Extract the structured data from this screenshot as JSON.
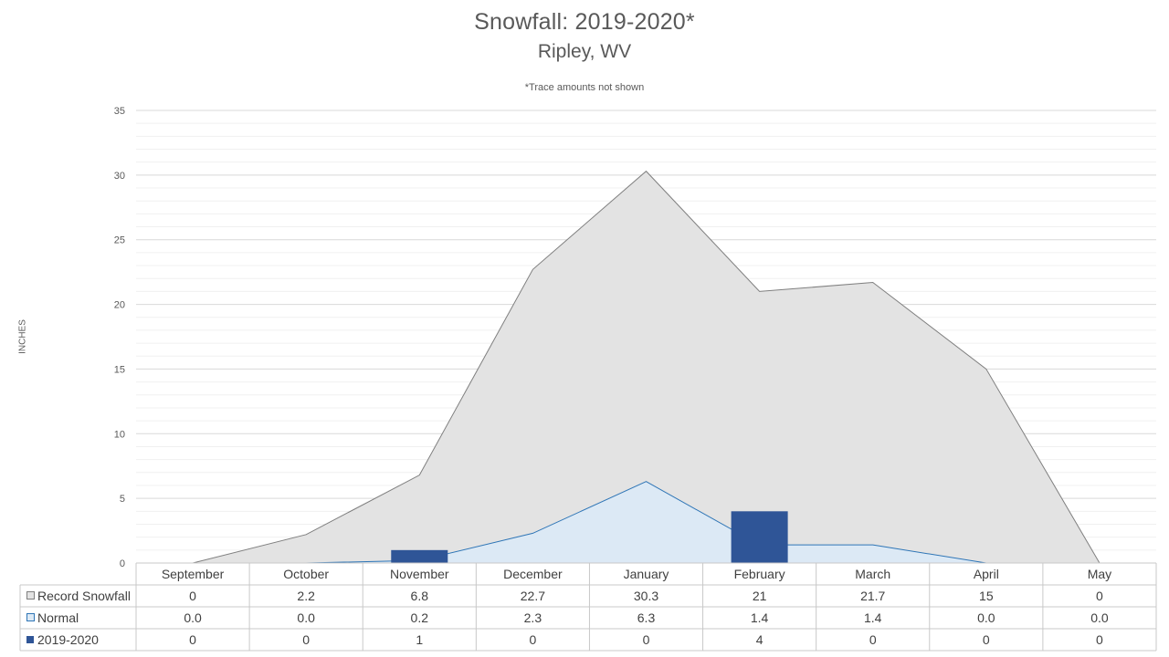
{
  "chart_data": {
    "type": "area",
    "title": "Snowfall: 2019-2020*",
    "subtitle": "Ripley, WV",
    "note": "*Trace amounts not shown",
    "ylabel": "INCHES",
    "ylim": [
      0,
      35
    ],
    "yticks": [
      0,
      5,
      10,
      15,
      20,
      25,
      30,
      35
    ],
    "grid": true,
    "categories": [
      "September",
      "October",
      "November",
      "December",
      "January",
      "February",
      "March",
      "April",
      "May"
    ],
    "series": [
      {
        "name": "Record Snowfall",
        "kind": "area",
        "color": "#e3e3e3",
        "line_color": "#7f7f7f",
        "values": [
          0,
          2.2,
          6.8,
          22.7,
          30.3,
          21,
          21.7,
          15,
          0
        ],
        "labels": [
          "0",
          "2.2",
          "6.8",
          "22.7",
          "30.3",
          "21",
          "21.7",
          "15",
          "0"
        ]
      },
      {
        "name": "Normal",
        "kind": "area",
        "color": "#dce9f5",
        "line_color": "#2e75b6",
        "values": [
          0.0,
          0.0,
          0.2,
          2.3,
          6.3,
          1.4,
          1.4,
          0.0,
          0.0
        ],
        "labels": [
          "0.0",
          "0.0",
          "0.2",
          "2.3",
          "6.3",
          "1.4",
          "1.4",
          "0.0",
          "0.0"
        ]
      },
      {
        "name": "2019-2020",
        "kind": "bar",
        "color": "#2f5597",
        "values": [
          0,
          0,
          1,
          0,
          0,
          4,
          0,
          0,
          0
        ],
        "labels": [
          "0",
          "0",
          "1",
          "0",
          "0",
          "4",
          "0",
          "0",
          "0"
        ]
      }
    ]
  }
}
